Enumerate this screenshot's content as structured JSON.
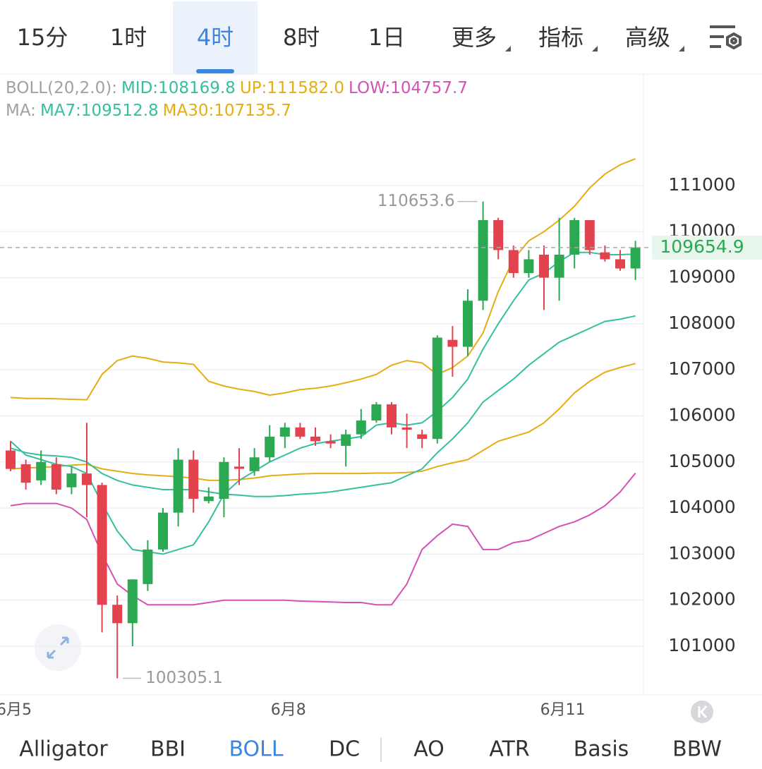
{
  "tabs": [
    {
      "label": "15分"
    },
    {
      "label": "1时"
    },
    {
      "label": "4时"
    },
    {
      "label": "8时"
    },
    {
      "label": "1日"
    },
    {
      "label": "更多",
      "dropdown": true
    },
    {
      "label": "指标",
      "dropdown": true
    },
    {
      "label": "高级",
      "dropdown": true
    }
  ],
  "active_tab": 2,
  "legend": [
    [
      {
        "label": "BOLL(20,2.0):",
        "color": "#a0a0a8"
      },
      {
        "label": "MID:108169.8",
        "color": "#35bfa0"
      },
      {
        "label": "UP:111582.0",
        "color": "#e6ad12"
      },
      {
        "label": "LOW:104757.7",
        "color": "#d452b3"
      }
    ],
    [
      {
        "label": "MA:",
        "color": "#a0a0a8"
      },
      {
        "label": "MA7:109512.8",
        "color": "#35bfa0"
      },
      {
        "label": "MA30:107135.7",
        "color": "#e6ad12"
      }
    ]
  ],
  "chart_data": {
    "type": "candlestick",
    "categories": [
      "6月5",
      null,
      null,
      null,
      null,
      null,
      null,
      null,
      null,
      null,
      null,
      null,
      null,
      null,
      null,
      null,
      null,
      null,
      "6月8",
      null,
      null,
      null,
      null,
      null,
      null,
      null,
      null,
      null,
      null,
      null,
      null,
      null,
      null,
      null,
      null,
      null,
      "6月11",
      null,
      null,
      null,
      null,
      null
    ],
    "ohlc": {
      "open": [
        105250,
        104950,
        104600,
        104950,
        104450,
        104750,
        104500,
        101900,
        101500,
        102350,
        103100,
        103900,
        105050,
        104150,
        104200,
        104900,
        104800,
        105100,
        105550,
        105750,
        105550,
        105450,
        105350,
        105600,
        105900,
        106250,
        105750,
        105600,
        105500,
        107650,
        107500,
        108500,
        110250,
        109600,
        109100,
        109500,
        109000,
        109500,
        110250,
        109550,
        109400,
        109200
      ],
      "high": [
        105450,
        105050,
        105250,
        105100,
        104900,
        105850,
        104550,
        102100,
        102450,
        103300,
        104000,
        105300,
        105250,
        104450,
        105100,
        105300,
        105300,
        105800,
        105850,
        105850,
        105750,
        105600,
        105700,
        106150,
        106300,
        106300,
        106050,
        105700,
        107750,
        107950,
        108750,
        110653.6,
        110300,
        109700,
        109600,
        109700,
        110300,
        110300,
        110250,
        109700,
        109600,
        109800
      ],
      "low": [
        104800,
        104400,
        104500,
        104300,
        104300,
        103800,
        101300,
        100305.1,
        101000,
        102200,
        103050,
        103600,
        103900,
        104100,
        103800,
        104500,
        104700,
        105000,
        105300,
        105500,
        105350,
        105300,
        104900,
        105500,
        105850,
        105600,
        105300,
        105300,
        105400,
        106850,
        107300,
        108300,
        109400,
        109000,
        109000,
        108300,
        108500,
        109200,
        109500,
        109350,
        109150,
        108950
      ],
      "close": [
        104850,
        104550,
        105000,
        104400,
        104750,
        104500,
        101900,
        101500,
        102450,
        103100,
        103900,
        105050,
        104200,
        104250,
        105000,
        104850,
        105100,
        105550,
        105750,
        105550,
        105450,
        105400,
        105600,
        105900,
        106250,
        105750,
        105700,
        105500,
        107700,
        107500,
        108500,
        110250,
        109600,
        109100,
        109400,
        109000,
        109500,
        110250,
        109600,
        109400,
        109200,
        109654.9
      ]
    },
    "up_color": "#2aa952",
    "down_color": "#e2434f",
    "lines": [
      {
        "color": "#e6ad12",
        "values": [
          106400,
          106380,
          106380,
          106370,
          106360,
          106350,
          106900,
          107200,
          107300,
          107250,
          107170,
          107150,
          107120,
          106750,
          106650,
          106580,
          106530,
          106450,
          106500,
          106570,
          106600,
          106650,
          106720,
          106800,
          106900,
          107100,
          107200,
          107150,
          106900,
          107050,
          107300,
          107800,
          108700,
          109400,
          109800,
          110000,
          110250,
          110550,
          110950,
          111250,
          111450,
          111582
        ]
      },
      {
        "color": "#e6ad12",
        "values": [
          104850,
          104870,
          104880,
          104900,
          104930,
          104950,
          104850,
          104800,
          104750,
          104720,
          104700,
          104680,
          104650,
          104600,
          104600,
          104620,
          104650,
          104700,
          104720,
          104740,
          104750,
          104750,
          104750,
          104750,
          104760,
          104760,
          104770,
          104800,
          104900,
          104980,
          105050,
          105250,
          105450,
          105550,
          105650,
          105850,
          106150,
          106500,
          106750,
          106950,
          107050,
          107135.7
        ]
      },
      {
        "color": "#35bfa0",
        "values": [
          105300,
          105200,
          105150,
          105130,
          105100,
          105000,
          104750,
          104600,
          104500,
          104450,
          104400,
          104400,
          104400,
          104350,
          104300,
          104280,
          104250,
          104250,
          104270,
          104300,
          104320,
          104350,
          104400,
          104450,
          104500,
          104550,
          104700,
          104850,
          105200,
          105500,
          105850,
          106300,
          106550,
          106800,
          107100,
          107350,
          107600,
          107750,
          107900,
          108050,
          108100,
          108169.8
        ]
      },
      {
        "color": "#35bfa0",
        "values": [
          105450,
          105150,
          105050,
          104950,
          104900,
          104750,
          104100,
          103500,
          103100,
          103050,
          103000,
          103100,
          103200,
          103700,
          104300,
          104600,
          104800,
          105000,
          105150,
          105300,
          105400,
          105450,
          105500,
          105550,
          105800,
          105850,
          105800,
          105850,
          106100,
          106400,
          106800,
          107450,
          108000,
          108500,
          108950,
          109100,
          109350,
          109550,
          109550,
          109500,
          109500,
          109512.8
        ]
      },
      {
        "color": "#d452b3",
        "values": [
          104050,
          104100,
          104100,
          104100,
          104000,
          103750,
          103000,
          102350,
          102100,
          101900,
          101900,
          101900,
          101900,
          101950,
          102000,
          102000,
          102000,
          102000,
          102000,
          101980,
          101970,
          101960,
          101950,
          101950,
          101900,
          101900,
          102350,
          103100,
          103400,
          103650,
          103600,
          103100,
          103100,
          103250,
          103300,
          103450,
          103600,
          103700,
          103850,
          104050,
          104350,
          104757.7
        ]
      }
    ],
    "high_label": "110653.6",
    "low_label": "100305.1",
    "last_price_label": "109654.9",
    "ylim": [
      99943,
      113420
    ],
    "yticks": [
      101000,
      102000,
      103000,
      104000,
      105000,
      106000,
      107000,
      108000,
      109000,
      110000,
      111000
    ],
    "grid": true
  },
  "bottom_tabs": [
    "Alligator",
    "BBI",
    "BOLL",
    "DC",
    "AO",
    "ATR",
    "Basis",
    "BBW"
  ],
  "active_bottom_tab": 2
}
